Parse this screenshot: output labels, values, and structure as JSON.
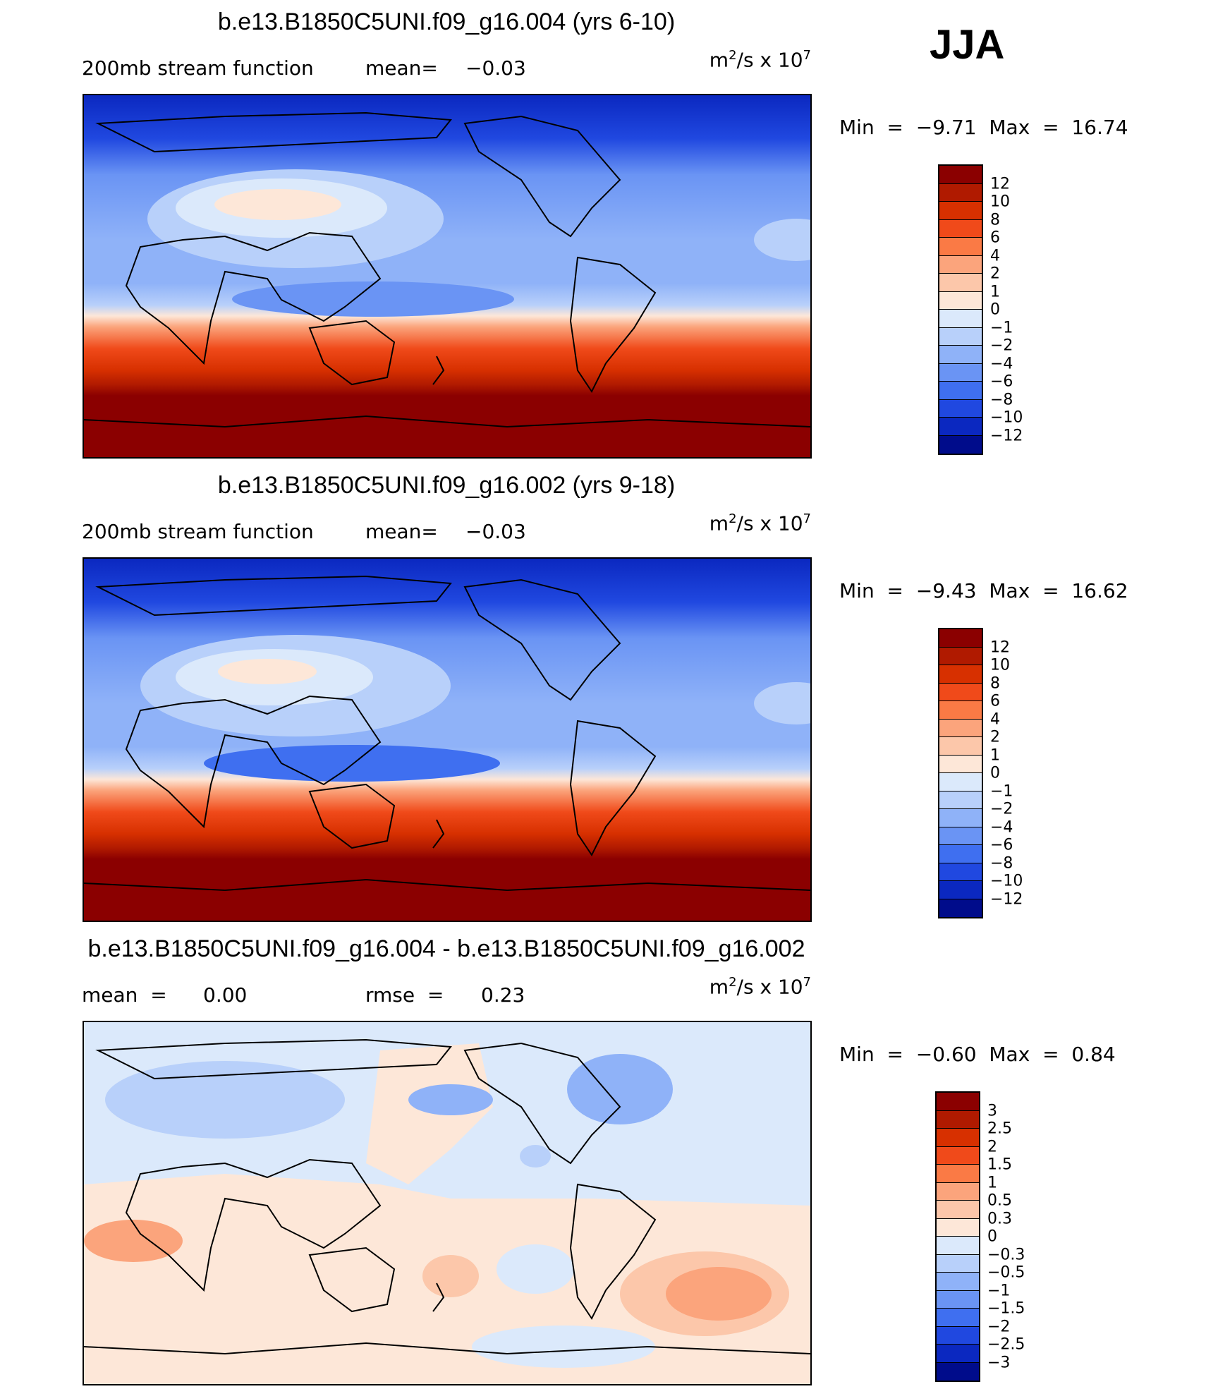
{
  "season": "JJA",
  "chart_data": [
    {
      "type": "heatmap",
      "title": "b.e13.B1850C5UNI.f09_g16.004 (yrs 6-10)",
      "subtitle_left": "200mb stream function",
      "mean_label": "mean=",
      "mean_value": "−0.03",
      "units_base": "m",
      "units_mid": "/s  x  10",
      "units_sup1": "2",
      "units_sup2": "7",
      "min_label": "Min  =",
      "min_value": "−9.71",
      "max_label": "Max  =",
      "max_value": "16.74",
      "colorbar_labels": [
        "12",
        "10",
        "8",
        "6",
        "4",
        "2",
        "1",
        "0",
        "−1",
        "−2",
        "−4",
        "−6",
        "−8",
        "−10",
        "−12"
      ],
      "colorbar_colors": [
        "#8b0000",
        "#b01a00",
        "#d73000",
        "#f04a1a",
        "#fa7a45",
        "#fba47c",
        "#fcc7aa",
        "#fde7d8",
        "#dbe9fb",
        "#b8d0fa",
        "#8fb2f8",
        "#6a94f4",
        "#3f6ff0",
        "#2048e0",
        "#0b28c0",
        "#000c8b"
      ]
    },
    {
      "type": "heatmap",
      "title": "b.e13.B1850C5UNI.f09_g16.002 (yrs 9-18)",
      "subtitle_left": "200mb stream function",
      "mean_label": "mean=",
      "mean_value": "−0.03",
      "units_base": "m",
      "units_mid": "/s  x  10",
      "units_sup1": "2",
      "units_sup2": "7",
      "min_label": "Min  =",
      "min_value": "−9.43",
      "max_label": "Max  =",
      "max_value": "16.62",
      "colorbar_labels": [
        "12",
        "10",
        "8",
        "6",
        "4",
        "2",
        "1",
        "0",
        "−1",
        "−2",
        "−4",
        "−6",
        "−8",
        "−10",
        "−12"
      ],
      "colorbar_colors": [
        "#8b0000",
        "#b01a00",
        "#d73000",
        "#f04a1a",
        "#fa7a45",
        "#fba47c",
        "#fcc7aa",
        "#fde7d8",
        "#dbe9fb",
        "#b8d0fa",
        "#8fb2f8",
        "#6a94f4",
        "#3f6ff0",
        "#2048e0",
        "#0b28c0",
        "#000c8b"
      ]
    },
    {
      "type": "heatmap",
      "title": "b.e13.B1850C5UNI.f09_g16.004 - b.e13.B1850C5UNI.f09_g16.002",
      "mean_label": "mean  =",
      "mean_value": "0.00",
      "rmse_label": "rmse  =",
      "rmse_value": "0.23",
      "units_base": "m",
      "units_mid": "/s  x  10",
      "units_sup1": "2",
      "units_sup2": "7",
      "min_label": "Min  =",
      "min_value": "−0.60",
      "max_label": "Max  =",
      "max_value": "0.84",
      "colorbar_labels": [
        "3",
        "2.5",
        "2",
        "1.5",
        "1",
        "0.5",
        "0.3",
        "0",
        "−0.3",
        "−0.5",
        "−1",
        "−1.5",
        "−2",
        "−2.5",
        "−3"
      ],
      "colorbar_colors": [
        "#8b0000",
        "#b01a00",
        "#d73000",
        "#f04a1a",
        "#fa7a45",
        "#fba47c",
        "#fcc7aa",
        "#fde7d8",
        "#dbe9fb",
        "#b8d0fa",
        "#8fb2f8",
        "#6a94f4",
        "#3f6ff0",
        "#2048e0",
        "#0b28c0",
        "#000c8b"
      ]
    }
  ]
}
